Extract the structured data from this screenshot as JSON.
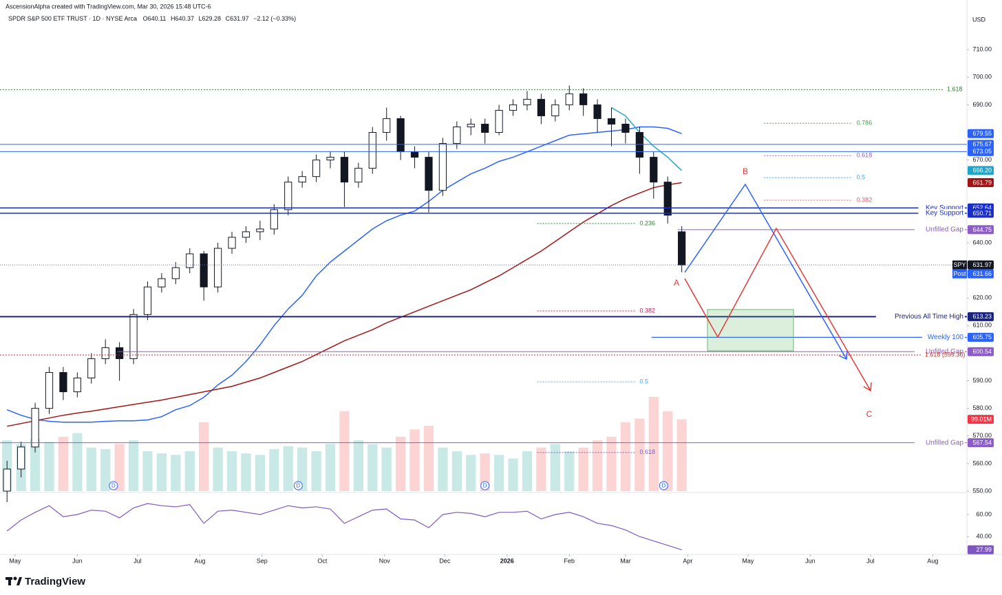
{
  "header": "AscensionAlpha created with TradingView.com, Mar 30, 2026 15:48 UTC-6",
  "footer": "TradingView",
  "chart_data": {
    "type": "candlestick",
    "title": "SPDR S&P 500 ETF TRUST · 1D · NYSE Arca",
    "legend_ohlc": [
      "O640.11",
      "H640.37",
      "L629.28",
      "C631.97",
      "−2.12 (−0.33%)"
    ],
    "currency": "USD",
    "symbol": "SPY",
    "post": {
      "label": "Post",
      "value": 631.66
    },
    "x": [
      -4,
      3,
      10,
      17,
      24,
      31,
      38,
      45,
      52,
      59,
      66,
      73,
      80,
      87,
      94,
      101,
      108,
      115,
      122,
      129,
      136,
      143,
      150,
      157,
      164,
      171,
      178,
      185,
      192,
      199,
      206,
      213,
      220,
      227,
      234,
      241,
      248,
      255,
      262,
      269,
      276,
      283,
      290,
      297,
      304,
      311,
      318,
      325,
      332
    ],
    "open": [
      550,
      558,
      566,
      580,
      593,
      586,
      591,
      598,
      602,
      598,
      614,
      624,
      627,
      631,
      636,
      624,
      638,
      642,
      644,
      645,
      652,
      662,
      664,
      670,
      671,
      662,
      667,
      680,
      685,
      673,
      671,
      659,
      676,
      682,
      683,
      680,
      688,
      690,
      692,
      686,
      690,
      694,
      690,
      685,
      683,
      680,
      671,
      662,
      644
    ],
    "high": [
      561,
      568,
      582,
      595,
      595,
      593,
      600,
      605,
      604,
      616,
      626,
      629,
      633,
      638,
      637,
      640,
      644,
      646,
      648,
      654,
      664,
      666,
      672,
      673,
      673,
      669,
      682,
      689,
      686,
      675,
      673,
      678,
      684,
      685,
      685,
      690,
      692,
      695,
      694,
      692,
      697,
      696,
      692,
      689,
      685,
      682,
      673,
      664,
      646
    ],
    "low": [
      546,
      555,
      564,
      578,
      583,
      584,
      589,
      596,
      590,
      596,
      612,
      622,
      625,
      629,
      619,
      622,
      636,
      640,
      641,
      643,
      650,
      660,
      662,
      667,
      653,
      660,
      665,
      677,
      670,
      667,
      651,
      657,
      674,
      679,
      676,
      679,
      686,
      688,
      683,
      684,
      688,
      686,
      680,
      675,
      676,
      665,
      656,
      647,
      629.28
    ],
    "close": [
      558,
      566,
      580,
      593,
      586,
      591,
      598,
      602,
      598,
      614,
      624,
      627,
      631,
      636,
      624,
      638,
      642,
      644,
      645,
      652,
      662,
      664,
      670,
      671,
      662,
      667,
      680,
      685,
      673,
      671,
      659,
      676,
      682,
      683,
      680,
      688,
      690,
      692,
      686,
      690,
      694,
      690,
      685,
      683,
      680,
      671,
      662,
      650,
      631.97
    ],
    "xlim": [
      -7.5,
      474
    ],
    "xticks": [
      {
        "value": 0,
        "label": "May"
      },
      {
        "value": 31,
        "label": "Jun"
      },
      {
        "value": 61,
        "label": "Jul"
      },
      {
        "value": 92,
        "label": "Aug"
      },
      {
        "value": 123,
        "label": "Sep"
      },
      {
        "value": 153,
        "label": "Oct"
      },
      {
        "value": 184,
        "label": "Nov"
      },
      {
        "value": 214,
        "label": "Dec"
      },
      {
        "value": 245,
        "label": "2026"
      },
      {
        "value": 276,
        "label": "Feb"
      },
      {
        "value": 304,
        "label": "Mar"
      },
      {
        "value": 335,
        "label": "Apr"
      },
      {
        "value": 365,
        "label": "May"
      },
      {
        "value": 396,
        "label": "Jun"
      },
      {
        "value": 426,
        "label": "Jul"
      },
      {
        "value": 457,
        "label": "Aug"
      }
    ],
    "ylim": [
      550,
      722.5
    ],
    "yticks": [
      {
        "value": 710,
        "label": "710.00"
      },
      {
        "value": 700,
        "label": "700.00"
      },
      {
        "value": 690,
        "label": "690.00"
      },
      {
        "value": 670,
        "label": "670.00"
      },
      {
        "value": 640,
        "label": "640.00"
      },
      {
        "value": 620,
        "label": "620.00"
      },
      {
        "value": 610,
        "label": "610.00"
      },
      {
        "value": 590,
        "label": "590.00"
      },
      {
        "value": 580,
        "label": "580.00"
      },
      {
        "value": 570,
        "label": "570.00"
      },
      {
        "value": 560,
        "label": "560.00"
      },
      {
        "value": 550,
        "label": "550.00"
      }
    ],
    "moving_averages": [
      {
        "color": "#2962ff",
        "values": [
          579.5,
          577.5,
          576,
          575.3,
          575,
          575,
          575,
          575.3,
          575.5,
          575.5,
          575.8,
          577,
          579.5,
          581,
          584,
          588.5,
          592,
          597,
          603,
          610,
          616,
          621,
          628,
          633,
          637,
          641,
          645,
          648,
          650,
          651.5,
          655,
          659,
          662,
          665,
          667,
          669.5,
          671,
          673,
          675,
          677,
          679,
          679.5,
          680,
          680.5,
          681,
          682,
          682,
          681.5,
          679.55
        ]
      },
      {
        "color": "#a31515",
        "values": [
          573.5,
          574.5,
          575.5,
          576.5,
          577.5,
          578.3,
          579,
          579.8,
          580.6,
          581.4,
          582.2,
          583,
          584,
          585,
          586,
          587,
          588,
          589.5,
          591,
          593,
          595,
          597,
          599.5,
          602,
          604.5,
          606.5,
          608.5,
          611,
          613,
          615,
          617,
          619,
          621,
          623,
          625.5,
          628,
          631,
          634,
          637,
          640.5,
          644,
          647.5,
          650.5,
          653.5,
          656,
          658,
          660,
          661,
          661.79
        ]
      },
      {
        "color": "#1fa7c9",
        "values": [
          null,
          null,
          null,
          null,
          null,
          null,
          null,
          null,
          null,
          null,
          null,
          null,
          null,
          null,
          null,
          null,
          null,
          null,
          null,
          null,
          null,
          null,
          null,
          null,
          null,
          null,
          null,
          null,
          null,
          null,
          null,
          null,
          null,
          null,
          null,
          null,
          null,
          null,
          null,
          null,
          null,
          null,
          null,
          689,
          686,
          680,
          675,
          671,
          666.2
        ],
        "last_label": "666.20"
      }
    ],
    "levels": [
      {
        "value": 675.67,
        "color": "#2962ff",
        "from": -7.5,
        "width": 1
      },
      {
        "value": 673.05,
        "color": "#2962ff",
        "from": -7.5,
        "width": 1
      },
      {
        "value": 652.64,
        "color": "#1a2fc9",
        "from": -7.5,
        "width": 1.5,
        "text": "Key Support"
      },
      {
        "value": 650.71,
        "color": "#1a2fc9",
        "from": -7.5,
        "width": 1.5,
        "text": "Key Support"
      },
      {
        "value": 644.75,
        "color": "#8e5cc9",
        "from": 330,
        "width": 1,
        "text": "Unfilled Gap"
      },
      {
        "value": 613.23,
        "color": "#1a237e",
        "from": -7.5,
        "width": 2,
        "text": "Previous All Time High"
      },
      {
        "value": 605.75,
        "color": "#2962ff",
        "from": 317,
        "width": 1.2,
        "text": "Weekly 100"
      },
      {
        "value": 600.54,
        "color": "#8e5cc9",
        "from": 51,
        "width": 1,
        "text": "Unfilled Gap"
      },
      {
        "value": 567.54,
        "color": "#8e5cc9",
        "from": -7.5,
        "width": 1,
        "text": "Unfilled Gap"
      }
    ],
    "fib_levels": [
      {
        "label": "1.618",
        "value": 695.5,
        "color": "#2e7d32",
        "from": -7.5,
        "to": 462
      },
      {
        "label": "0.786",
        "value": 683.3,
        "color": "#43a047",
        "from": 373,
        "to": 417
      },
      {
        "label": "0.618",
        "value": 671.6,
        "color": "#8e5cc9",
        "from": 373,
        "to": 417
      },
      {
        "label": "0.5",
        "value": 663.6,
        "color": "#42a5f5",
        "from": 373,
        "to": 417
      },
      {
        "label": "0.382",
        "value": 655.4,
        "color": "#e05a7a",
        "from": 373,
        "to": 417
      },
      {
        "label": "0.236",
        "value": 647,
        "color": "#2e7d32",
        "from": 260,
        "to": 309
      },
      {
        "label": "0.382",
        "value": 615.3,
        "color": "#c2185b",
        "from": 260,
        "to": 309
      },
      {
        "label": "0.5",
        "value": 589.6,
        "color": "#42a5f5",
        "from": 260,
        "to": 309
      },
      {
        "label": "0.618",
        "value": 564,
        "color": "#7e57c2",
        "from": 260,
        "to": 309
      },
      {
        "label": "1.618 (599.36)",
        "value": 599.36,
        "color": "#c62828",
        "from": -7.5,
        "to": 451
      }
    ],
    "volume": {
      "values": [
        70,
        65,
        72,
        68,
        75,
        80,
        60,
        58,
        65,
        70,
        55,
        52,
        50,
        55,
        95,
        60,
        55,
        52,
        50,
        58,
        62,
        60,
        55,
        65,
        110,
        70,
        65,
        60,
        75,
        85,
        90,
        60,
        55,
        50,
        52,
        50,
        45,
        55,
        60,
        65,
        55,
        60,
        70,
        75,
        95,
        100,
        130,
        110,
        99.01
      ],
      "last_label": "99.01M",
      "ylim": [
        0,
        165
      ]
    },
    "rsi": {
      "values": [
        45,
        55,
        62,
        68,
        58,
        60,
        64,
        63,
        57,
        66,
        70,
        68,
        67,
        69,
        52,
        63,
        64,
        62,
        60,
        64,
        68,
        66,
        67,
        65,
        52,
        58,
        64,
        65,
        56,
        55,
        48,
        60,
        62,
        61,
        58,
        62,
        62,
        63,
        56,
        60,
        62,
        58,
        52,
        50,
        46,
        40,
        36,
        32,
        27.99
      ],
      "ylim": [
        24.4,
        77.5
      ],
      "yticks": [
        {
          "value": 40,
          "label": "40.00"
        },
        {
          "value": 60,
          "label": "60.00"
        }
      ],
      "color": "#7e57c2"
    },
    "dividends": {
      "label": "D",
      "x": [
        49,
        141,
        234,
        323
      ]
    },
    "wave_labels": [
      "A",
      "B",
      "C"
    ]
  }
}
